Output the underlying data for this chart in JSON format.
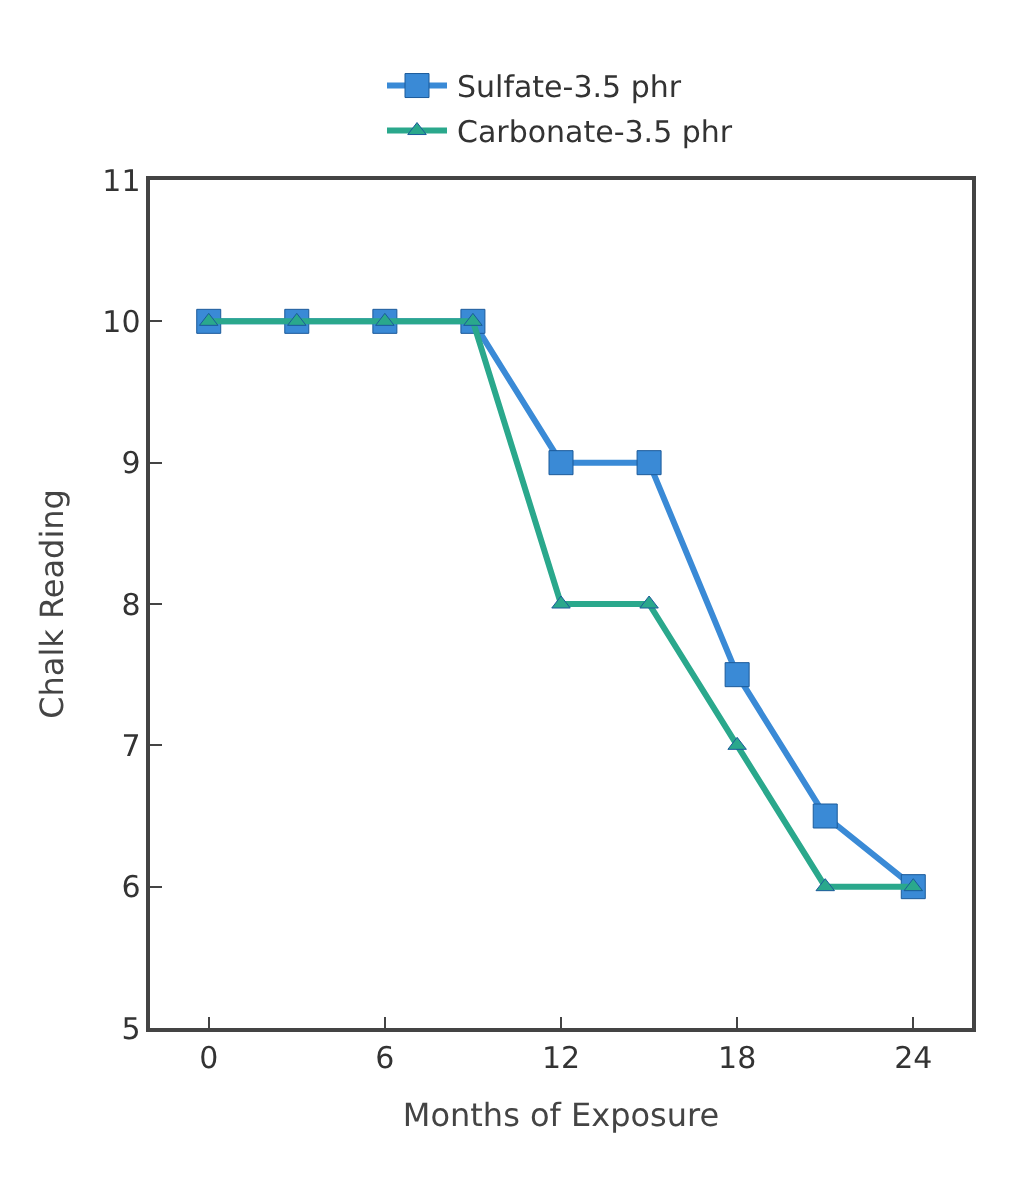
{
  "chart_data": {
    "type": "line",
    "xlabel": "Months of Exposure",
    "ylabel": "Chalk Reading",
    "x": [
      0,
      3,
      6,
      9,
      12,
      15,
      18,
      21,
      24
    ],
    "series": [
      {
        "name": "Sulfate-3.5 phr",
        "color": "#3a8ad6",
        "marker": "square",
        "values": [
          10,
          10,
          10,
          10,
          9,
          9,
          7.5,
          6.5,
          6
        ]
      },
      {
        "name": "Carbonate-3.5 phr",
        "color": "#2aa88c",
        "marker": "triangle",
        "values": [
          10,
          10,
          10,
          10,
          8,
          8,
          7,
          6,
          6
        ]
      }
    ],
    "xlim": [
      -2,
      26
    ],
    "xticks": [
      0,
      6,
      12,
      18,
      24
    ],
    "ylim": [
      5,
      11
    ],
    "yticks": [
      5,
      6,
      7,
      8,
      9,
      10,
      11
    ],
    "grid": false,
    "legend": "top",
    "line_style": "solid"
  }
}
